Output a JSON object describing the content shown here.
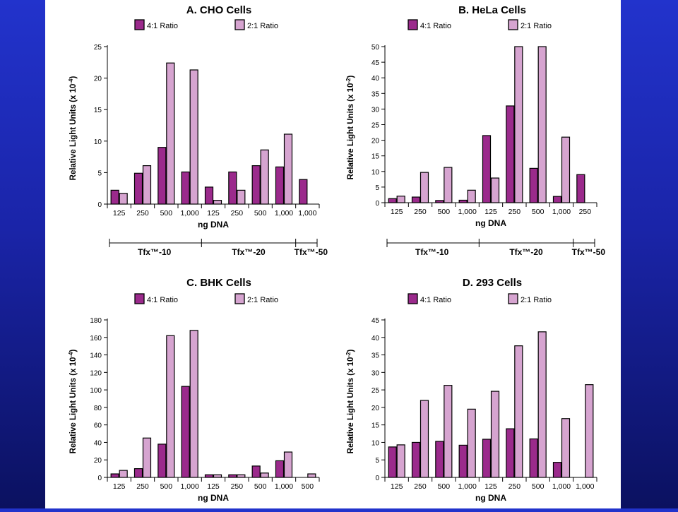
{
  "chart_data": [
    {
      "type": "bar",
      "title": "A. CHO Cells",
      "ylabel": "Relative Light Units (x 10",
      "ylabel_exp": "-4",
      "xlabel": "ng DNA",
      "ylim": [
        0,
        25
      ],
      "yticks": [
        0,
        5,
        10,
        15,
        20,
        25
      ],
      "categories": [
        "125",
        "250",
        "500",
        "1,000",
        "125",
        "250",
        "500",
        "1,000",
        "1,000"
      ],
      "series": [
        {
          "name": "4:1 Ratio",
          "values": [
            2.2,
            4.9,
            9.0,
            5.1,
            2.7,
            5.1,
            6.1,
            5.9,
            3.9
          ]
        },
        {
          "name": "2:1 Ratio",
          "values": [
            1.7,
            6.1,
            22.4,
            21.3,
            0.6,
            2.2,
            8.6,
            11.1,
            null
          ]
        }
      ],
      "groups": [
        {
          "label": "Tfx™-10",
          "range": [
            0,
            3
          ]
        },
        {
          "label": "Tfx™-20",
          "range": [
            4,
            7
          ]
        },
        {
          "label": "Tfx™-50",
          "range": [
            8,
            8
          ]
        }
      ]
    },
    {
      "type": "bar",
      "title": "B. HeLa Cells",
      "ylabel": "Relative Light Units (x 10",
      "ylabel_exp": "-2",
      "xlabel": "ng DNA",
      "ylim": [
        0,
        50
      ],
      "yticks": [
        0,
        5,
        10,
        15,
        20,
        25,
        30,
        35,
        40,
        45,
        50
      ],
      "categories": [
        "125",
        "250",
        "500",
        "1,000",
        "125",
        "250",
        "500",
        "1,000",
        "250"
      ],
      "series": [
        {
          "name": "4:1 Ratio",
          "values": [
            1.3,
            1.8,
            0.7,
            0.8,
            21.5,
            31.0,
            11.0,
            2.0,
            9.0
          ]
        },
        {
          "name": "2:1 Ratio",
          "values": [
            2.1,
            9.7,
            11.3,
            4.0,
            7.9,
            50.0,
            50.0,
            21.0,
            null
          ]
        }
      ],
      "groups": [
        {
          "label": "Tfx™-10",
          "range": [
            0,
            3
          ]
        },
        {
          "label": "Tfx™-20",
          "range": [
            4,
            7
          ]
        },
        {
          "label": "Tfx™-50",
          "range": [
            8,
            8
          ]
        }
      ]
    },
    {
      "type": "bar",
      "title": "C. BHK Cells",
      "ylabel": "Relative Light Units (x 10",
      "ylabel_exp": "-4",
      "xlabel": "ng DNA",
      "ylim": [
        0,
        180
      ],
      "yticks": [
        0,
        20,
        40,
        60,
        80,
        100,
        120,
        140,
        160,
        180
      ],
      "categories": [
        "125",
        "250",
        "500",
        "1,000",
        "125",
        "250",
        "500",
        "1,000",
        "500"
      ],
      "series": [
        {
          "name": "4:1 Ratio",
          "values": [
            4,
            10,
            38,
            104,
            3,
            3,
            13,
            19,
            null
          ]
        },
        {
          "name": "2:1 Ratio",
          "values": [
            8,
            45,
            162,
            168,
            3,
            3,
            5,
            29,
            4
          ]
        }
      ]
    },
    {
      "type": "bar",
      "title": "D. 293 Cells",
      "ylabel": "Relative Light Units (x 10",
      "ylabel_exp": "-2",
      "xlabel": "ng DNA",
      "ylim": [
        0,
        45
      ],
      "yticks": [
        0,
        5,
        10,
        15,
        20,
        25,
        30,
        35,
        40,
        45
      ],
      "categories": [
        "125",
        "250",
        "500",
        "1,000",
        "125",
        "250",
        "500",
        "1,000",
        "1,000"
      ],
      "series": [
        {
          "name": "4:1 Ratio",
          "values": [
            8.7,
            10.0,
            10.3,
            9.2,
            10.9,
            13.9,
            11.0,
            4.3,
            null
          ]
        },
        {
          "name": "2:1 Ratio",
          "values": [
            9.3,
            22.0,
            26.3,
            19.5,
            24.6,
            37.6,
            41.6,
            16.8,
            26.5
          ]
        }
      ]
    }
  ],
  "colors": {
    "ratio_4_1": "#9b2a8c",
    "ratio_2_1": "#d6a4d0",
    "background": "#1e2ab8"
  }
}
